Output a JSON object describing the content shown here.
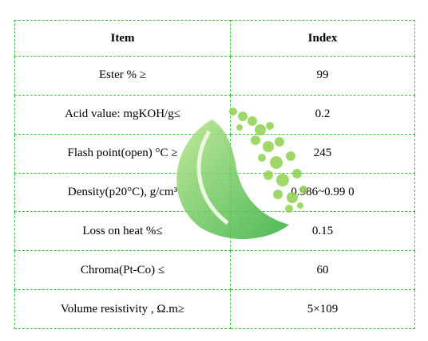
{
  "table": {
    "header": [
      "Item",
      "Index"
    ],
    "rows": [
      [
        "Ester % ≥",
        "99"
      ],
      [
        "Acid value: mgKOH/g≤",
        "0.2"
      ],
      [
        "Flash point(open) °C ≥",
        "245"
      ],
      [
        "Density(p20°C), g/cm³",
        "0.986~0.99 0"
      ],
      [
        "Loss on heat %≤",
        "0.15"
      ],
      [
        "Chroma(Pt-Co) ≤",
        "60"
      ],
      [
        "Volume resistivity , Ω.m≥",
        "5×109"
      ]
    ]
  }
}
